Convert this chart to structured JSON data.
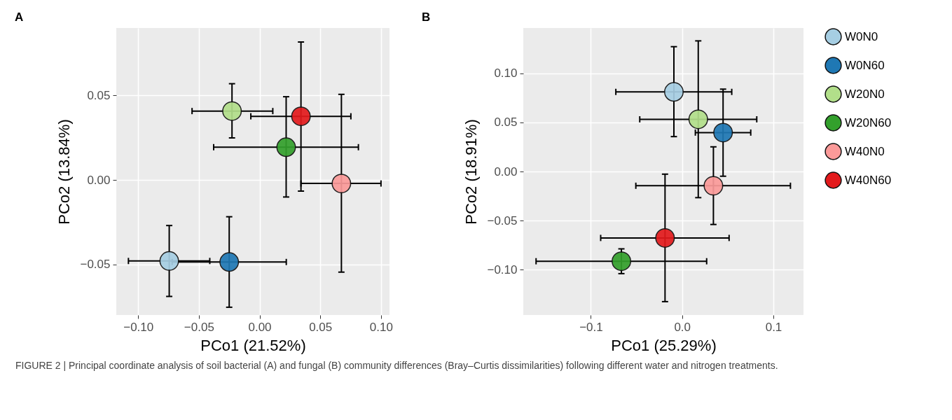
{
  "chart_data": [
    {
      "type": "scatter",
      "title": "A",
      "xlabel": "PCo1 (21.52%)",
      "ylabel": "PCo2 (13.84%)",
      "xlim": [
        -0.118,
        0.107
      ],
      "ylim": [
        -0.08,
        0.09
      ],
      "xticks": [
        {
          "value": -0.1,
          "label": "−0.10"
        },
        {
          "value": -0.05,
          "label": "−0.05"
        },
        {
          "value": 0,
          "label": "0.00"
        },
        {
          "value": 0.05,
          "label": "0.05"
        },
        {
          "value": 0.1,
          "label": "0.10"
        }
      ],
      "yticks": [
        {
          "value": -0.05,
          "label": "−0.05"
        },
        {
          "value": 0,
          "label": "0.00"
        },
        {
          "value": 0.05,
          "label": "0.05"
        }
      ],
      "grid": true,
      "legend": "right",
      "marker": "circle",
      "series": [
        {
          "name": "W0N0",
          "color": "#a6cee3",
          "x": [
            -0.0744
          ],
          "values": [
            -0.048
          ],
          "xerrors": [
            [
              -0.108,
              -0.041
            ]
          ],
          "errors": [
            [
              -0.069,
              -0.027
            ]
          ]
        },
        {
          "name": "W0N60",
          "color": "#1f78b4",
          "x": [
            -0.025
          ],
          "values": [
            -0.0486
          ],
          "xerrors": [
            [
              -0.072,
              0.022
            ]
          ],
          "errors": [
            [
              -0.0754,
              -0.0218
            ]
          ]
        },
        {
          "name": "W20N0",
          "color": "#b2df8a",
          "x": [
            -0.0227
          ],
          "values": [
            0.0408
          ],
          "xerrors": [
            [
              -0.0556,
              0.0109
            ]
          ],
          "errors": [
            [
              0.0249,
              0.057
            ]
          ]
        },
        {
          "name": "W20N60",
          "color": "#33a02c",
          "x": [
            0.0219
          ],
          "values": [
            0.0194
          ],
          "xerrors": [
            [
              -0.0378,
              0.0814
            ]
          ],
          "errors": [
            [
              -0.0101,
              0.0493
            ]
          ]
        },
        {
          "name": "W40N0",
          "color": "#fb9a99",
          "x": [
            0.0674
          ],
          "values": [
            -0.0021
          ],
          "xerrors": [
            [
              0.0341,
              0.1
            ]
          ],
          "errors": [
            [
              -0.0546,
              0.0507
            ]
          ]
        },
        {
          "name": "W40N60",
          "color": "#e31a1c",
          "x": [
            0.0341
          ],
          "values": [
            0.0377
          ],
          "xerrors": [
            [
              -0.0072,
              0.0752
            ]
          ],
          "errors": [
            [
              -0.0066,
              0.0817
            ]
          ]
        }
      ],
      "annotations": [
        "FIGURE 2 | Principal coordinate analysis of soil bacterial (A) and fungal (B) community differences (Bray–Curtis dissimilarities) following different water and nitrogen treatments."
      ]
    },
    {
      "type": "scatter",
      "title": "B",
      "xlabel": "PCo1 (25.29%)",
      "ylabel": "PCo2 (18.91%)",
      "xlim": [
        -0.174,
        0.133
      ],
      "ylim": [
        -0.146,
        0.146
      ],
      "xticks": [
        {
          "value": -0.1,
          "label": "−0.1"
        },
        {
          "value": 0,
          "label": "0.0"
        },
        {
          "value": 0.1,
          "label": "0.1"
        }
      ],
      "yticks": [
        {
          "value": -0.1,
          "label": "−0.10"
        },
        {
          "value": -0.05,
          "label": "−0.05"
        },
        {
          "value": 0,
          "label": "0.00"
        },
        {
          "value": 0.05,
          "label": "0.05"
        },
        {
          "value": 0.1,
          "label": "0.10"
        }
      ],
      "grid": true,
      "legend": "right",
      "marker": "circle",
      "series": [
        {
          "name": "W0N0",
          "color": "#a6cee3",
          "x": [
            -0.009
          ],
          "values": [
            0.081
          ],
          "xerrors": [
            [
              -0.0726,
              0.0544
            ]
          ],
          "errors": [
            [
              0.0355,
              0.127
            ]
          ]
        },
        {
          "name": "W0N60",
          "color": "#1f78b4",
          "x": [
            0.0449
          ],
          "values": [
            0.0396
          ],
          "xerrors": [
            [
              0.0145,
              0.0752
            ]
          ],
          "errors": [
            [
              -0.0048,
              0.0838
            ]
          ]
        },
        {
          "name": "W20N0",
          "color": "#b2df8a",
          "x": [
            0.0177
          ],
          "values": [
            0.0531
          ],
          "xerrors": [
            [
              -0.0464,
              0.0818
            ]
          ],
          "errors": [
            [
              -0.0266,
              0.1329
            ]
          ]
        },
        {
          "name": "W20N60",
          "color": "#33a02c",
          "x": [
            -0.0665
          ],
          "values": [
            -0.0913
          ],
          "xerrors": [
            [
              -0.16,
              0.0269
            ]
          ],
          "errors": [
            [
              -0.1039,
              -0.0787
            ]
          ]
        },
        {
          "name": "W40N0",
          "color": "#fb9a99",
          "x": [
            0.0343
          ],
          "values": [
            -0.0145
          ],
          "xerrors": [
            [
              -0.0507,
              0.1187
            ]
          ],
          "errors": [
            [
              -0.0539,
              0.0251
            ]
          ]
        },
        {
          "name": "W40N60",
          "color": "#e31a1c",
          "x": [
            -0.0187
          ],
          "values": [
            -0.0676
          ],
          "xerrors": [
            [
              -0.0892,
              0.0515
            ]
          ],
          "errors": [
            [
              -0.1324,
              -0.0027
            ]
          ]
        }
      ]
    }
  ]
}
